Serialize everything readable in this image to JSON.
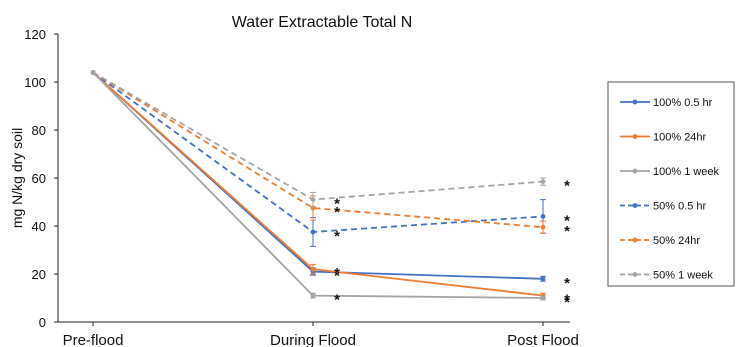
{
  "chart_data": {
    "type": "line",
    "title": "Water Extractable Total N",
    "xlabel": "",
    "ylabel": "mg N/kg dry soil",
    "categories": [
      "Pre-flood",
      "During Flood",
      "Post Flood"
    ],
    "ylim": [
      0,
      120
    ],
    "yticks": [
      0,
      20,
      40,
      60,
      80,
      100,
      120
    ],
    "grid": false,
    "legend_position": "right",
    "series": [
      {
        "name": "100% 0.5 hr",
        "values": [
          104,
          21,
          18
        ],
        "errors": [
          0,
          1.5,
          1
        ],
        "color": "#4472C4",
        "dashed": false,
        "stars": [
          false,
          true,
          true
        ]
      },
      {
        "name": "100% 24hr",
        "values": [
          104,
          22,
          11
        ],
        "errors": [
          0,
          2,
          1
        ],
        "color": "#ED7D31",
        "dashed": false,
        "stars": [
          false,
          true,
          true
        ]
      },
      {
        "name": "100% 1 week",
        "values": [
          104,
          11,
          10
        ],
        "errors": [
          0,
          1,
          0.8
        ],
        "color": "#A5A5A5",
        "dashed": false,
        "stars": [
          false,
          true,
          true
        ]
      },
      {
        "name": "50% 0.5 hr",
        "values": [
          104,
          37.5,
          44
        ],
        "errors": [
          0,
          6,
          7
        ],
        "color": "#4472C4",
        "dashed": true,
        "stars": [
          false,
          true,
          true
        ]
      },
      {
        "name": "50% 24hr",
        "values": [
          104,
          47.5,
          39.5
        ],
        "errors": [
          0,
          5,
          2.5
        ],
        "color": "#ED7D31",
        "dashed": true,
        "stars": [
          false,
          true,
          true
        ]
      },
      {
        "name": "50% 1 week",
        "values": [
          104,
          51,
          58.5
        ],
        "errors": [
          0,
          3,
          1.5
        ],
        "color": "#A5A5A5",
        "dashed": true,
        "stars": [
          false,
          true,
          true
        ]
      }
    ],
    "star_symbol": "*"
  }
}
